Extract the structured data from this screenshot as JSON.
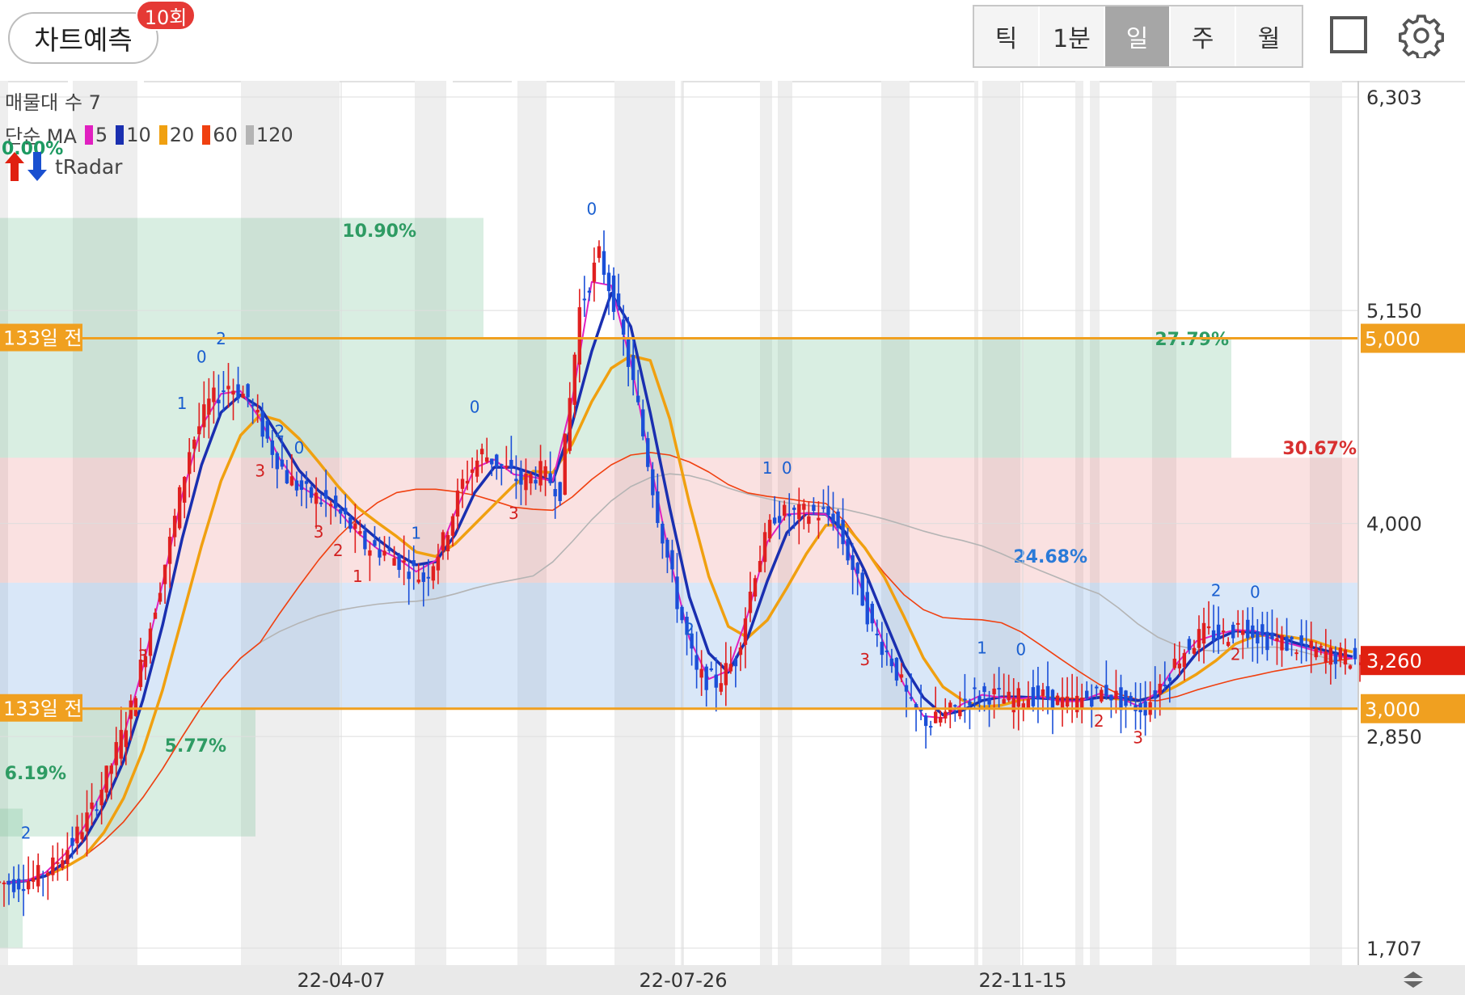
{
  "header": {
    "predict_label": "차트예측",
    "predict_count": "10회",
    "periods": [
      "틱",
      "1분",
      "일",
      "주",
      "월"
    ],
    "active_period": "일"
  },
  "indicators": {
    "volume_profile_label": "매물대 수 7",
    "ma_label": "단순 MA",
    "ma_legend": [
      {
        "period": "5",
        "color": "#e020c0"
      },
      {
        "period": "10",
        "color": "#1a2fb0"
      },
      {
        "period": "20",
        "color": "#f0a010"
      },
      {
        "period": "60",
        "color": "#f04010"
      },
      {
        "period": "120",
        "color": "#b4b4b4"
      }
    ],
    "tradar_pct": "0.00%",
    "tradar_label": "tRadar"
  },
  "chart_data": {
    "type": "candlestick",
    "y_axis": {
      "ticks": [
        "6,303",
        "5,150",
        "4,000",
        "2,850",
        "1,707"
      ],
      "tick_values": [
        6303,
        5150,
        4000,
        2850,
        1707
      ],
      "range": [
        1707,
        6303
      ]
    },
    "x_axis": {
      "tick_labels": [
        "22-04-07",
        "22-07-26",
        "22-11-15"
      ]
    },
    "current_price": {
      "label": "3,260",
      "value": 3260,
      "color": "#e02010"
    },
    "reference_lines": [
      {
        "label": "133일 전",
        "price_label": "5,000",
        "value": 5000,
        "color": "#f0a020"
      },
      {
        "label": "133일 전",
        "price_label": "3,000",
        "value": 3000,
        "color": "#f0a020"
      }
    ],
    "zones": [
      {
        "label": "5.77%",
        "from": 2310,
        "to": 3000,
        "color": "#2e9b63"
      },
      {
        "label": "10.90%",
        "from": 4355,
        "to": 5650,
        "color": "#2e9b63"
      },
      {
        "label": "27.79%",
        "from": 4355,
        "to": 5000,
        "color": "#2e9b63"
      },
      {
        "label": "30.67%",
        "from": 3680,
        "to": 4355,
        "color": "#d83030"
      },
      {
        "label": "24.68%",
        "from": 3000,
        "to": 3680,
        "color": "#2a7ad8"
      },
      {
        "label": "6.19%",
        "from": 1707,
        "to": 2460,
        "color": "#2e9b63"
      }
    ],
    "prices": [
      2060,
      2080,
      2150,
      2280,
      2450,
      2700,
      3000,
      3450,
      3900,
      4400,
      4650,
      4750,
      4680,
      4450,
      4250,
      4160,
      4120,
      4020,
      3880,
      3850,
      3780,
      3700,
      3900,
      4220,
      4380,
      4310,
      4220,
      4280,
      4180,
      5160,
      5450,
      5120,
      4620,
      4050,
      3580,
      3180,
      3140,
      3270,
      3750,
      4050,
      4050,
      4060,
      4040,
      3760,
      3430,
      3260,
      3000,
      2920,
      2980,
      3070,
      3080,
      3040,
      3070,
      3060,
      3020,
      3060,
      3100,
      3020,
      3010,
      3170,
      3320,
      3410,
      3390,
      3460,
      3380,
      3360,
      3330,
      3300,
      3280,
      3260
    ],
    "markers": [
      {
        "text": "2",
        "color": "#1a5fd0"
      },
      {
        "text": "3",
        "color": "#d22020"
      },
      {
        "text": "1",
        "color": "#1a5fd0"
      },
      {
        "text": "0",
        "color": "#1a5fd0"
      },
      {
        "text": "2",
        "color": "#1a5fd0"
      },
      {
        "text": "3",
        "color": "#d22020"
      },
      {
        "text": "2",
        "color": "#1a5fd0"
      },
      {
        "text": "0",
        "color": "#1a5fd0"
      },
      {
        "text": "3",
        "color": "#d22020"
      },
      {
        "text": "2",
        "color": "#d22020"
      },
      {
        "text": "1",
        "color": "#d22020"
      },
      {
        "text": "1",
        "color": "#1a5fd0"
      },
      {
        "text": "0",
        "color": "#1a5fd0"
      },
      {
        "text": "3",
        "color": "#d22020"
      },
      {
        "text": "0",
        "color": "#1a5fd0"
      },
      {
        "text": "2",
        "color": "#1a5fd0"
      },
      {
        "text": "1",
        "color": "#1a5fd0"
      },
      {
        "text": "0",
        "color": "#1a5fd0"
      },
      {
        "text": "3",
        "color": "#d22020"
      },
      {
        "text": "1",
        "color": "#1a5fd0"
      },
      {
        "text": "0",
        "color": "#1a5fd0"
      },
      {
        "text": "2",
        "color": "#d22020"
      },
      {
        "text": "3",
        "color": "#d22020"
      },
      {
        "text": "2",
        "color": "#1a5fd0"
      },
      {
        "text": "2",
        "color": "#d22020"
      },
      {
        "text": "0",
        "color": "#1a5fd0"
      }
    ]
  }
}
